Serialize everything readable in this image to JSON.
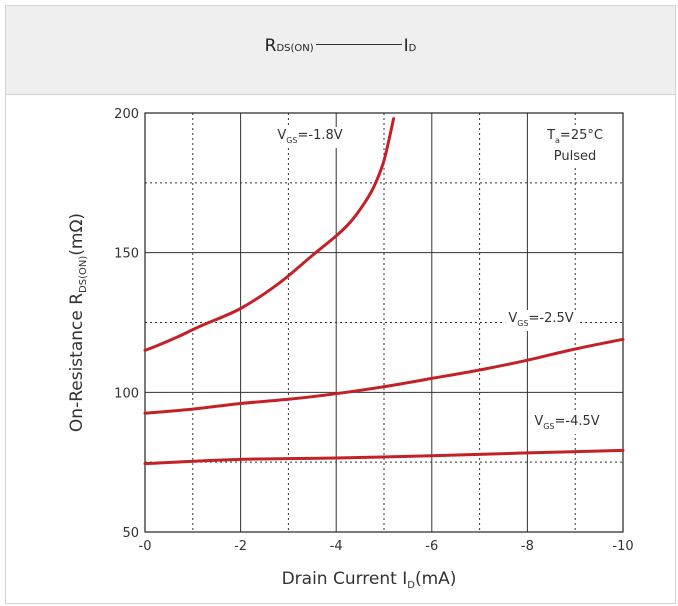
{
  "header": {
    "left_main": "R",
    "left_sub": "DS(ON)",
    "right_main": "I",
    "right_sub": "D"
  },
  "chart_data": {
    "type": "line",
    "title": "",
    "xlabel": "Drain Current I",
    "xlabel_sub": "D",
    "xlabel_unit": "(mA)",
    "ylabel": "On-Resistance R",
    "ylabel_sub": "DS(ON)",
    "ylabel_unit": "(mΩ)",
    "xlim": [
      0,
      -10
    ],
    "ylim": [
      50,
      200
    ],
    "x_ticks": [
      "-0",
      "-2",
      "-4",
      "-6",
      "-8",
      "-10"
    ],
    "y_ticks": [
      "50",
      "100",
      "150",
      "200"
    ],
    "grid": true,
    "annotations": [
      {
        "main": "T",
        "sub": "a",
        "rest": "=25°C"
      },
      {
        "main": "Pulsed",
        "sub": "",
        "rest": ""
      }
    ],
    "series": [
      {
        "name": "V_GS=-1.8V",
        "label_main": "V",
        "label_sub": "GS",
        "label_rest": "=-1.8V",
        "x": [
          0,
          -0.3,
          -0.7,
          -1.2,
          -2.0,
          -2.8,
          -3.5,
          -4.0,
          -4.3,
          -4.6,
          -4.8,
          -5.0,
          -5.2
        ],
        "y": [
          115,
          117,
          120,
          124,
          130,
          139,
          149,
          156,
          161,
          168,
          174,
          183,
          198
        ]
      },
      {
        "name": "V_GS=-2.5V",
        "label_main": "V",
        "label_sub": "GS",
        "label_rest": "=-2.5V",
        "x": [
          0,
          -1,
          -2,
          -3,
          -4,
          -5,
          -6,
          -7,
          -8,
          -9,
          -10
        ],
        "y": [
          92.5,
          94,
          96,
          97.5,
          99.5,
          102,
          105,
          108,
          111.5,
          115.5,
          119
        ]
      },
      {
        "name": "V_GS=-4.5V",
        "label_main": "V",
        "label_sub": "GS",
        "label_rest": "=-4.5V",
        "x": [
          0,
          -2,
          -4,
          -6,
          -8,
          -10
        ],
        "y": [
          74.5,
          76,
          76.5,
          77.3,
          78.3,
          79.2
        ]
      }
    ],
    "colors": {
      "line": "#c42127",
      "grid": "#333333",
      "axis": "#222222"
    }
  }
}
